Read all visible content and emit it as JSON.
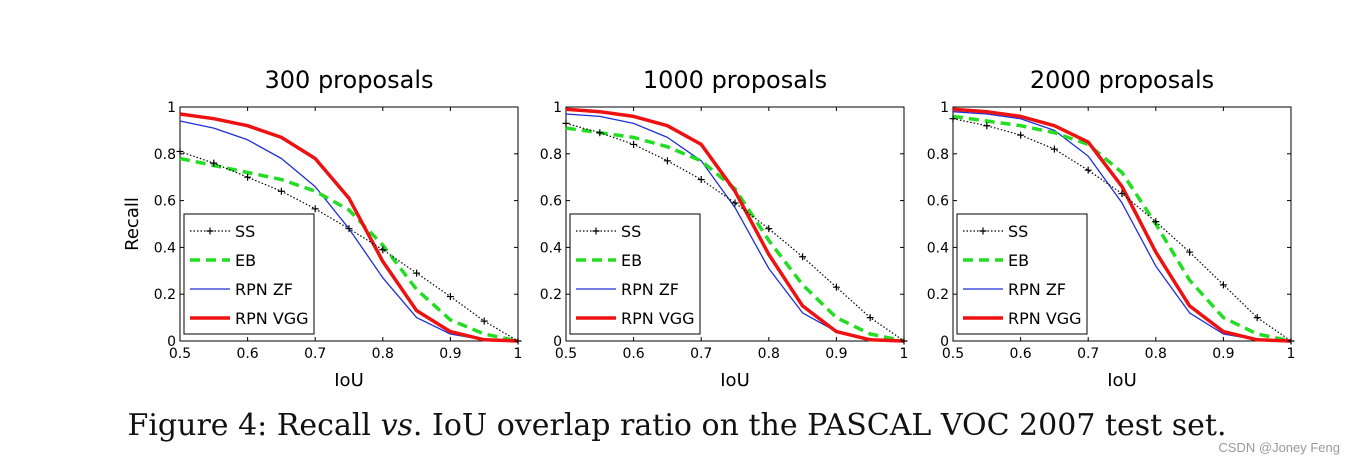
{
  "chart_data": [
    {
      "type": "line",
      "title": "300 proposals",
      "xlabel": "IoU",
      "ylabel": "Recall",
      "xlim": [
        0.5,
        1
      ],
      "ylim": [
        0,
        1
      ],
      "xticks": [
        "0.5",
        "0.6",
        "0.7",
        "0.8",
        "0.9",
        "1"
      ],
      "yticks": [
        "0",
        "0.2",
        "0.4",
        "0.6",
        "0.8",
        "1"
      ],
      "x": [
        0.5,
        0.55,
        0.6,
        0.65,
        0.7,
        0.75,
        0.8,
        0.85,
        0.9,
        0.95,
        1.0
      ],
      "series": [
        {
          "name": "SS",
          "values": [
            0.81,
            0.76,
            0.7,
            0.64,
            0.565,
            0.48,
            0.39,
            0.29,
            0.19,
            0.085,
            0.0
          ]
        },
        {
          "name": "EB",
          "values": [
            0.78,
            0.75,
            0.72,
            0.69,
            0.64,
            0.56,
            0.41,
            0.22,
            0.09,
            0.03,
            0.0
          ]
        },
        {
          "name": "RPN ZF",
          "values": [
            0.94,
            0.91,
            0.86,
            0.78,
            0.66,
            0.48,
            0.27,
            0.1,
            0.03,
            0.005,
            0.0
          ]
        },
        {
          "name": "RPN VGG",
          "values": [
            0.97,
            0.95,
            0.92,
            0.87,
            0.78,
            0.61,
            0.34,
            0.13,
            0.04,
            0.005,
            0.0
          ]
        }
      ]
    },
    {
      "type": "line",
      "title": "1000 proposals",
      "xlabel": "IoU",
      "ylabel": "",
      "xlim": [
        0.5,
        1
      ],
      "ylim": [
        0,
        1
      ],
      "xticks": [
        "0.5",
        "0.6",
        "0.7",
        "0.8",
        "0.9",
        "1"
      ],
      "yticks": [
        "0",
        "0.2",
        "0.4",
        "0.6",
        "0.8",
        "1"
      ],
      "x": [
        0.5,
        0.55,
        0.6,
        0.65,
        0.7,
        0.75,
        0.8,
        0.85,
        0.9,
        0.95,
        1.0
      ],
      "series": [
        {
          "name": "SS",
          "values": [
            0.93,
            0.89,
            0.84,
            0.77,
            0.69,
            0.59,
            0.48,
            0.36,
            0.23,
            0.1,
            0.0
          ]
        },
        {
          "name": "EB",
          "values": [
            0.91,
            0.89,
            0.87,
            0.83,
            0.77,
            0.65,
            0.43,
            0.24,
            0.1,
            0.03,
            0.0
          ]
        },
        {
          "name": "RPN ZF",
          "values": [
            0.97,
            0.96,
            0.93,
            0.87,
            0.77,
            0.57,
            0.31,
            0.12,
            0.04,
            0.005,
            0.0
          ]
        },
        {
          "name": "RPN VGG",
          "values": [
            0.99,
            0.98,
            0.96,
            0.92,
            0.84,
            0.64,
            0.37,
            0.15,
            0.04,
            0.005,
            0.0
          ]
        }
      ]
    },
    {
      "type": "line",
      "title": "2000 proposals",
      "xlabel": "IoU",
      "ylabel": "",
      "xlim": [
        0.5,
        1
      ],
      "ylim": [
        0,
        1
      ],
      "xticks": [
        "0.5",
        "0.6",
        "0.7",
        "0.8",
        "0.9",
        "1"
      ],
      "yticks": [
        "0",
        "0.2",
        "0.4",
        "0.6",
        "0.8",
        "1"
      ],
      "x": [
        0.5,
        0.55,
        0.6,
        0.65,
        0.7,
        0.75,
        0.8,
        0.85,
        0.9,
        0.95,
        1.0
      ],
      "series": [
        {
          "name": "SS",
          "values": [
            0.95,
            0.92,
            0.88,
            0.82,
            0.73,
            0.63,
            0.51,
            0.38,
            0.24,
            0.1,
            0.0
          ]
        },
        {
          "name": "EB",
          "values": [
            0.96,
            0.94,
            0.92,
            0.89,
            0.84,
            0.72,
            0.5,
            0.26,
            0.1,
            0.03,
            0.0
          ]
        },
        {
          "name": "RPN ZF",
          "values": [
            0.98,
            0.97,
            0.95,
            0.9,
            0.79,
            0.59,
            0.32,
            0.12,
            0.03,
            0.005,
            0.0
          ]
        },
        {
          "name": "RPN VGG",
          "values": [
            0.99,
            0.98,
            0.96,
            0.92,
            0.85,
            0.66,
            0.38,
            0.15,
            0.04,
            0.005,
            0.0
          ]
        }
      ]
    }
  ],
  "legend_position": "lower-left",
  "colors": {
    "SS": "#000000",
    "EB": "#22dd22",
    "RPN ZF": "#1f2fd6",
    "RPN VGG": "#ee1111"
  },
  "caption": {
    "prefix": "Figure 4: Recall ",
    "vs": "vs",
    "suffix": ". IoU overlap ratio on the PASCAL VOC 2007 test set."
  },
  "watermark": "CSDN @Joney Feng"
}
